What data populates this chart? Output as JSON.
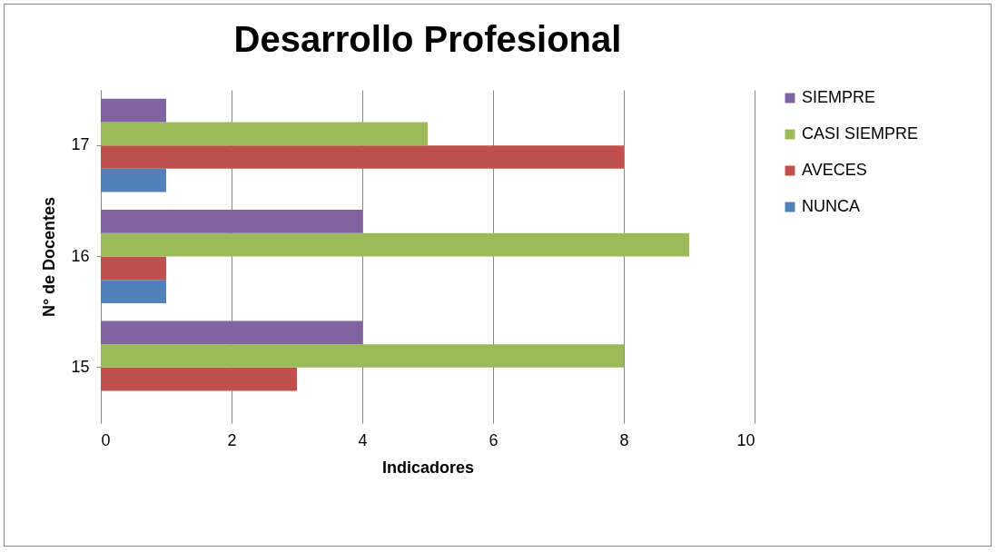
{
  "chart_data": {
    "type": "bar",
    "orientation": "horizontal",
    "title": "Desarrollo Profesional",
    "xlabel": "Indicadores",
    "ylabel": "N° de Docentes",
    "categories": [
      "17",
      "16",
      "15"
    ],
    "series": [
      {
        "name": "NUNCA",
        "color": "#4f81bd",
        "values": [
          1,
          1,
          0
        ]
      },
      {
        "name": "AVECES",
        "color": "#c0504d",
        "values": [
          8,
          1,
          3
        ]
      },
      {
        "name": "CASI SIEMPRE",
        "color": "#9bbb59",
        "values": [
          5,
          9,
          8
        ]
      },
      {
        "name": "SIEMPRE",
        "color": "#8064a2",
        "values": [
          1,
          4,
          4
        ]
      }
    ],
    "xlim": [
      0,
      10
    ],
    "xticks": [
      0,
      2,
      4,
      6,
      8,
      10
    ],
    "grid": "x",
    "legend": "right"
  }
}
